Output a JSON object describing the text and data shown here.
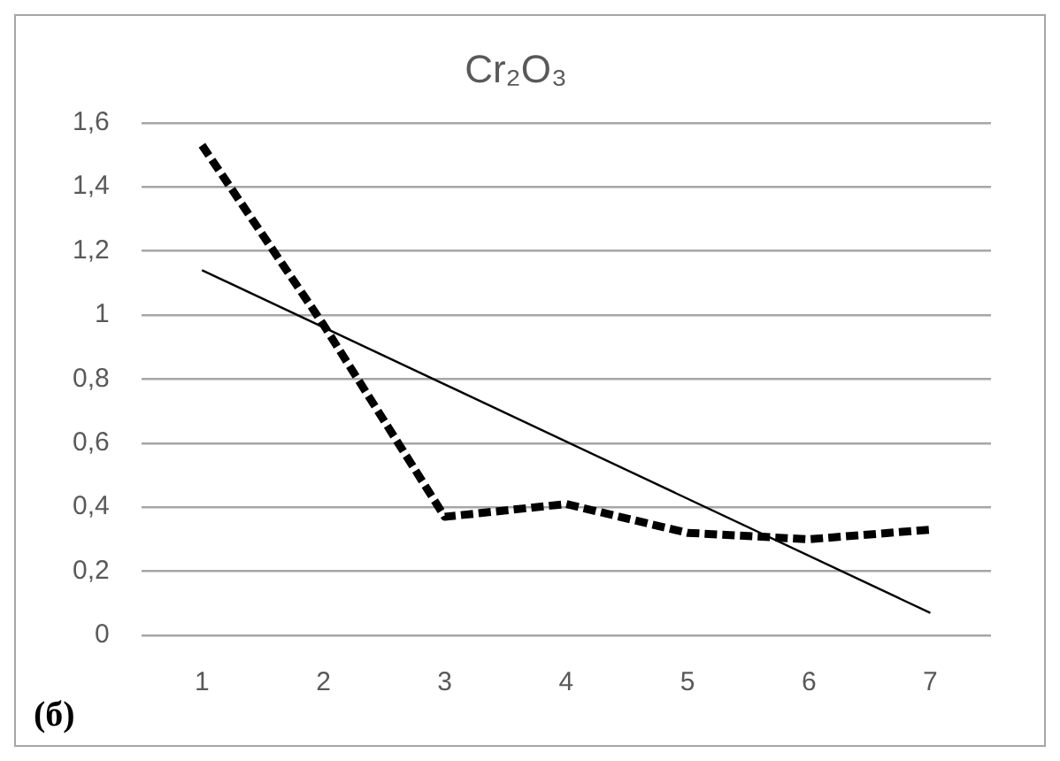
{
  "chart_data": {
    "type": "line",
    "title": "Cr₂O₃",
    "x": [
      1,
      2,
      3,
      4,
      5,
      6,
      7
    ],
    "series": [
      {
        "color": "#000000",
        "line_style": "dashed",
        "values": [
          1.53,
          0.97,
          0.37,
          0.41,
          0.32,
          0.3,
          0.33
        ]
      },
      {
        "color": "#000000",
        "line_style": "solid",
        "x": [
          1,
          7
        ],
        "values": [
          1.14,
          0.07
        ]
      }
    ],
    "xlim": [
      0.5,
      7.5
    ],
    "xticks": [
      1,
      2,
      3,
      4,
      5,
      6,
      7
    ],
    "ylim": [
      0,
      1.6
    ],
    "yticks": [
      0,
      {
        "value": 0.2,
        "label": "0,2"
      },
      {
        "value": 0.4,
        "label": "0,4"
      },
      {
        "value": 0.6,
        "label": "0,6"
      },
      {
        "value": 0.8,
        "label": "0,8"
      },
      1,
      {
        "value": 1.2,
        "label": "1,2"
      },
      {
        "value": 1.4,
        "label": "1,4"
      },
      {
        "value": 1.6,
        "label": "1,6"
      }
    ],
    "grid": "y",
    "legend": false,
    "marker": "none",
    "annotations": [
      "(б)"
    ]
  }
}
